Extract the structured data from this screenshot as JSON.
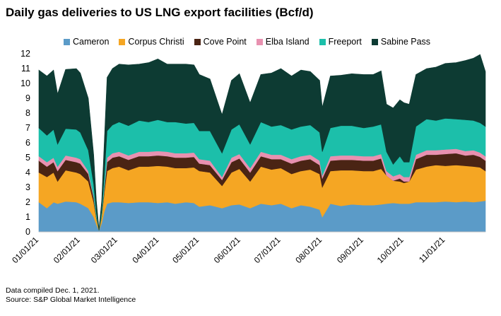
{
  "chart_data": {
    "type": "area",
    "stacked": true,
    "title": "Daily gas deliveries to US LNG export facilities (Bcf/d)",
    "xlabel": "",
    "ylabel": "",
    "ylim": [
      0,
      12
    ],
    "yticks": [
      0,
      1,
      2,
      3,
      4,
      5,
      6,
      7,
      8,
      9,
      10,
      11,
      12
    ],
    "xticks": [
      "01/01/21",
      "02/01/21",
      "03/01/21",
      "04/01/21",
      "05/01/21",
      "06/01/21",
      "07/01/21",
      "08/01/21",
      "09/01/21",
      "10/01/21",
      "11/01/21"
    ],
    "x_range_days": [
      0,
      334
    ],
    "x_days": [
      0,
      6,
      11,
      14,
      20,
      28,
      31,
      37,
      41,
      43,
      45,
      47,
      49,
      51,
      55,
      60,
      67,
      75,
      82,
      89,
      96,
      102,
      110,
      116,
      120,
      128,
      137,
      144,
      150,
      158,
      166,
      174,
      181,
      189,
      196,
      203,
      210,
      212,
      218,
      226,
      234,
      243,
      250,
      256,
      260,
      265,
      270,
      273,
      277,
      282,
      290,
      297,
      304,
      312,
      319,
      325,
      330,
      334
    ],
    "series": [
      {
        "name": "Cameron",
        "color": "#5b9bc8",
        "values": [
          2.0,
          1.6,
          2.0,
          1.9,
          2.05,
          2.0,
          1.9,
          1.6,
          1.0,
          0.5,
          0.1,
          0.6,
          1.4,
          1.9,
          2.0,
          2.0,
          1.95,
          2.0,
          2.0,
          1.95,
          2.0,
          1.9,
          2.0,
          1.95,
          1.7,
          1.8,
          1.6,
          1.8,
          1.85,
          1.6,
          1.9,
          1.8,
          1.9,
          1.6,
          1.8,
          1.7,
          1.5,
          1.0,
          1.9,
          1.75,
          1.85,
          1.8,
          1.8,
          1.85,
          1.9,
          1.95,
          1.9,
          1.9,
          1.9,
          2.0,
          2.0,
          2.0,
          2.05,
          2.0,
          2.05,
          2.0,
          2.05,
          2.1
        ]
      },
      {
        "name": "Corpus Christi",
        "color": "#f5a623",
        "values": [
          2.0,
          2.1,
          2.0,
          1.5,
          2.1,
          2.0,
          2.0,
          1.8,
          1.0,
          0.4,
          0.0,
          0.4,
          1.3,
          2.2,
          2.3,
          2.4,
          2.2,
          2.4,
          2.4,
          2.5,
          2.4,
          2.4,
          2.3,
          2.4,
          2.4,
          2.2,
          1.5,
          2.2,
          2.4,
          1.8,
          2.5,
          2.4,
          2.4,
          2.3,
          2.3,
          2.5,
          2.4,
          2.0,
          2.2,
          2.4,
          2.3,
          2.3,
          2.3,
          2.4,
          1.9,
          1.5,
          1.5,
          1.4,
          1.5,
          2.2,
          2.4,
          2.5,
          2.4,
          2.5,
          2.4,
          2.4,
          2.3,
          2.0
        ]
      },
      {
        "name": "Cove Point",
        "color": "#4a2414",
        "values": [
          0.8,
          0.7,
          0.7,
          0.7,
          0.7,
          0.7,
          0.7,
          0.5,
          0.3,
          0.1,
          0.0,
          0.1,
          0.3,
          0.6,
          0.7,
          0.7,
          0.7,
          0.7,
          0.7,
          0.7,
          0.7,
          0.7,
          0.7,
          0.7,
          0.5,
          0.5,
          0.4,
          0.7,
          0.7,
          0.6,
          0.7,
          0.7,
          0.6,
          0.7,
          0.7,
          0.7,
          0.6,
          0.6,
          0.7,
          0.7,
          0.7,
          0.7,
          0.7,
          0.7,
          0.0,
          0.0,
          0.2,
          0.1,
          0.0,
          0.7,
          0.8,
          0.7,
          0.8,
          0.8,
          0.7,
          0.8,
          0.7,
          0.7
        ]
      },
      {
        "name": "Elba Island",
        "color": "#e891b0",
        "values": [
          0.3,
          0.3,
          0.3,
          0.3,
          0.3,
          0.3,
          0.3,
          0.2,
          0.1,
          0.0,
          0.0,
          0.0,
          0.1,
          0.3,
          0.3,
          0.3,
          0.3,
          0.3,
          0.3,
          0.3,
          0.3,
          0.3,
          0.3,
          0.3,
          0.3,
          0.3,
          0.2,
          0.3,
          0.3,
          0.3,
          0.3,
          0.3,
          0.3,
          0.3,
          0.3,
          0.3,
          0.3,
          0.2,
          0.3,
          0.3,
          0.3,
          0.3,
          0.3,
          0.3,
          0.3,
          0.3,
          0.3,
          0.3,
          0.3,
          0.3,
          0.3,
          0.3,
          0.3,
          0.3,
          0.3,
          0.3,
          0.3,
          0.3
        ]
      },
      {
        "name": "Freeport",
        "color": "#1cbfaa",
        "values": [
          1.9,
          1.8,
          1.9,
          1.5,
          1.8,
          1.9,
          1.8,
          1.4,
          0.8,
          0.3,
          0.0,
          0.3,
          0.8,
          1.8,
          1.9,
          2.0,
          2.0,
          2.1,
          2.0,
          2.1,
          2.0,
          2.1,
          2.0,
          2.0,
          1.9,
          2.0,
          1.6,
          1.9,
          2.0,
          1.6,
          2.0,
          1.9,
          2.0,
          2.0,
          2.0,
          2.0,
          1.9,
          1.6,
          1.9,
          2.0,
          2.0,
          1.9,
          2.0,
          2.0,
          1.3,
          0.8,
          1.2,
          1.0,
          1.0,
          1.9,
          2.1,
          2.0,
          2.1,
          2.0,
          2.1,
          2.0,
          2.0,
          2.0
        ]
      },
      {
        "name": "Sabine Pass",
        "color": "#0d3b33",
        "values": [
          3.9,
          4.0,
          4.0,
          3.4,
          4.0,
          4.1,
          4.0,
          3.5,
          2.0,
          0.8,
          0.1,
          0.7,
          2.3,
          3.6,
          3.8,
          3.9,
          4.1,
          3.8,
          4.0,
          4.1,
          3.9,
          3.9,
          4.0,
          3.9,
          3.8,
          3.5,
          2.6,
          3.3,
          3.4,
          2.8,
          3.2,
          3.6,
          3.8,
          3.6,
          3.8,
          3.6,
          3.5,
          3.0,
          3.5,
          3.4,
          3.5,
          3.6,
          3.5,
          3.6,
          3.2,
          3.8,
          3.8,
          4.0,
          3.9,
          3.5,
          3.4,
          3.6,
          3.7,
          3.8,
          4.0,
          4.2,
          4.6,
          3.7
        ]
      }
    ]
  },
  "legend_labels": [
    "Cameron",
    "Corpus Christi",
    "Cove Point",
    "Elba Island",
    "Freeport",
    "Sabine Pass"
  ],
  "footer": {
    "line1": "Data compiled Dec. 1, 2021.",
    "line2": "Source: S&P Global Market Intelligence"
  }
}
